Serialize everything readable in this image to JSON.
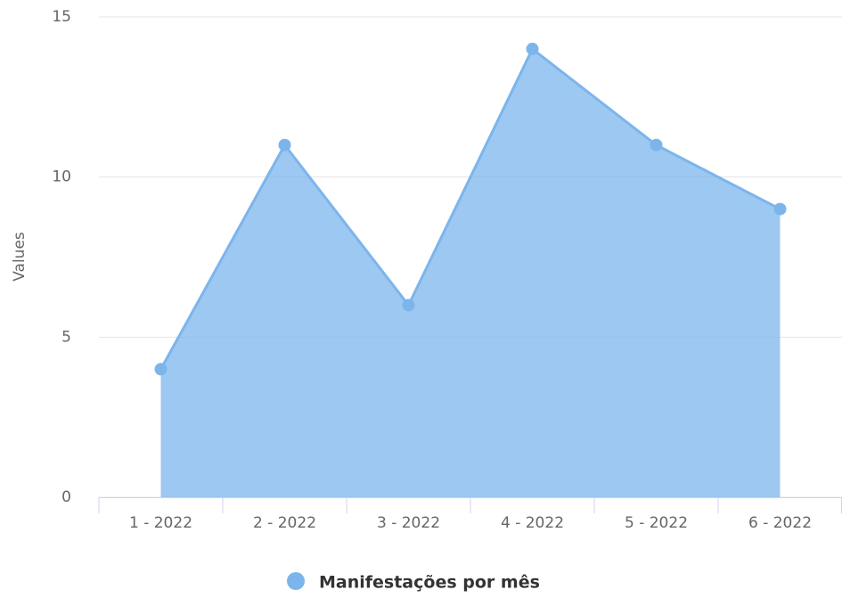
{
  "chart_data": {
    "type": "area",
    "y_label": "Values",
    "categories": [
      "1 - 2022",
      "2 - 2022",
      "3 - 2022",
      "4 - 2022",
      "5 - 2022",
      "6 - 2022"
    ],
    "series": [
      {
        "name": "Manifestações por mês",
        "color": "#7cb5ec",
        "values": [
          4,
          11,
          6,
          14,
          11,
          9
        ]
      }
    ],
    "ylim": [
      0,
      15
    ],
    "yticks": [
      0,
      5,
      10,
      15
    ],
    "grid": true,
    "legend": "bottom"
  }
}
